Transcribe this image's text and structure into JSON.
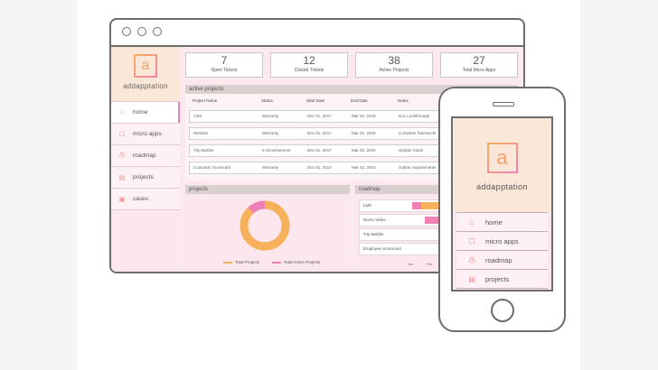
{
  "brand": {
    "name": "addapptation",
    "logo_letter": "a"
  },
  "sidebar": {
    "items": [
      {
        "label": "home",
        "icon": "home-icon"
      },
      {
        "label": "micro apps",
        "icon": "square-icon"
      },
      {
        "label": "roadmap",
        "icon": "road-icon"
      },
      {
        "label": "projects",
        "icon": "clipboard-icon"
      },
      {
        "label": "cases",
        "icon": "case-icon"
      }
    ]
  },
  "stats": [
    {
      "value": "7",
      "label": "Open Tickets"
    },
    {
      "value": "12",
      "label": "Closed Tickets"
    },
    {
      "value": "38",
      "label": "Active Projects"
    },
    {
      "value": "27",
      "label": "Total Micro Apps"
    }
  ],
  "active_projects": {
    "title": "active projects",
    "columns": [
      "Project Name",
      "Status",
      "Start Date",
      "End Date",
      "Notes"
    ],
    "rows": [
      [
        "LMS",
        "Warranty",
        "Dec 01, 2017",
        "Mar 02, 2018",
        "Doc Lookthrough"
      ],
      [
        "Website",
        "Warranty",
        "Dec 01, 2017",
        "Mar 02, 2018",
        "Complete framework"
      ],
      [
        "Trip Builder",
        "In Development",
        "Dec 01, 2017",
        "Mar 02, 2018",
        "Update Solds"
      ],
      [
        "Customer Scorecard",
        "Warranty",
        "Dec 01, 2017",
        "Mar 02, 2018",
        "Gather requirements"
      ]
    ]
  },
  "projects_panel": {
    "title": "projects",
    "legend": [
      "Total Projects",
      "Total Active Projects"
    ]
  },
  "roadmap_panel": {
    "title": "roadmap",
    "rows": [
      "LMS",
      "Demo Video",
      "Trip Builder",
      "Employee Scorecard"
    ],
    "axis": [
      "Jan",
      "Feb"
    ]
  },
  "chart_data": {
    "type": "pie",
    "categories": [
      "Total Projects",
      "Total Active Projects"
    ],
    "values": [
      88,
      12
    ],
    "colors": [
      "#f7b15a",
      "#ef7fb5"
    ]
  },
  "mobile": {
    "brand_name": "addapptation",
    "items": [
      {
        "label": "home",
        "icon": "home-icon"
      },
      {
        "label": "micro apps",
        "icon": "square-icon"
      },
      {
        "label": "roadmap",
        "icon": "road-icon"
      },
      {
        "label": "projects",
        "icon": "clipboard-icon"
      }
    ]
  },
  "colors": {
    "accent_orange": "#f7b15a",
    "accent_pink": "#ef7fb5",
    "peach": "#fbe7d7",
    "blush": "#fde7ef"
  }
}
